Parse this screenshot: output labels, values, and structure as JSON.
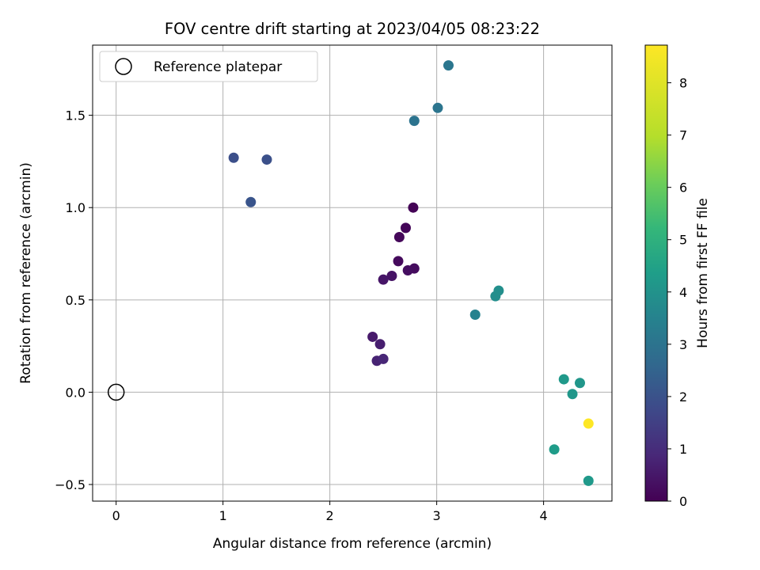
{
  "chart_data": {
    "type": "scatter",
    "title": "FOV centre drift starting at 2023/04/05 08:23:22",
    "xlabel": "Angular distance from reference (arcmin)",
    "ylabel": "Rotation from reference (arcmin)",
    "xlim": [
      -0.22,
      4.64
    ],
    "ylim": [
      -0.59,
      1.88
    ],
    "xticks": [
      0,
      1,
      2,
      3,
      4
    ],
    "xtick_labels": [
      "0",
      "1",
      "2",
      "3",
      "4"
    ],
    "yticks": [
      -0.5,
      0.0,
      0.5,
      1.0,
      1.5
    ],
    "ytick_labels": [
      "−0.5",
      "0.0",
      "0.5",
      "1.0",
      "1.5"
    ],
    "grid": true,
    "legend": {
      "placement": "upper-left",
      "entries": [
        "Reference platepar"
      ]
    },
    "reference_point": {
      "x": 0,
      "y": 0,
      "label": "Reference platepar"
    },
    "colorbar": {
      "label": "Hours from first FF file",
      "min": 0,
      "max": 8.72,
      "ticks": [
        0,
        1,
        2,
        3,
        4,
        5,
        6,
        7,
        8
      ],
      "colormap": "viridis"
    },
    "points": [
      {
        "x": 2.78,
        "y": 1.0,
        "hours": 0.05
      },
      {
        "x": 2.71,
        "y": 0.89,
        "hours": 0.1
      },
      {
        "x": 2.65,
        "y": 0.84,
        "hours": 0.15
      },
      {
        "x": 2.64,
        "y": 0.71,
        "hours": 0.2
      },
      {
        "x": 2.79,
        "y": 0.67,
        "hours": 0.25
      },
      {
        "x": 2.73,
        "y": 0.66,
        "hours": 0.3
      },
      {
        "x": 2.58,
        "y": 0.63,
        "hours": 0.4
      },
      {
        "x": 2.5,
        "y": 0.61,
        "hours": 0.45
      },
      {
        "x": 2.4,
        "y": 0.3,
        "hours": 0.55
      },
      {
        "x": 2.47,
        "y": 0.26,
        "hours": 0.65
      },
      {
        "x": 2.44,
        "y": 0.17,
        "hours": 0.75
      },
      {
        "x": 2.5,
        "y": 0.18,
        "hours": 0.85
      },
      {
        "x": 1.1,
        "y": 1.27,
        "hours": 1.9
      },
      {
        "x": 1.41,
        "y": 1.26,
        "hours": 1.95
      },
      {
        "x": 1.26,
        "y": 1.03,
        "hours": 2.05
      },
      {
        "x": 2.79,
        "y": 1.47,
        "hours": 3.0
      },
      {
        "x": 3.01,
        "y": 1.54,
        "hours": 3.05
      },
      {
        "x": 3.11,
        "y": 1.77,
        "hours": 3.1
      },
      {
        "x": 3.36,
        "y": 0.42,
        "hours": 3.5
      },
      {
        "x": 3.55,
        "y": 0.52,
        "hours": 3.85
      },
      {
        "x": 3.58,
        "y": 0.55,
        "hours": 3.9
      },
      {
        "x": 4.1,
        "y": -0.31,
        "hours": 4.3
      },
      {
        "x": 4.19,
        "y": 0.07,
        "hours": 4.2
      },
      {
        "x": 4.27,
        "y": -0.01,
        "hours": 4.15
      },
      {
        "x": 4.34,
        "y": 0.05,
        "hours": 4.1
      },
      {
        "x": 4.42,
        "y": -0.48,
        "hours": 4.2
      },
      {
        "x": 4.42,
        "y": -0.17,
        "hours": 8.72
      }
    ]
  }
}
